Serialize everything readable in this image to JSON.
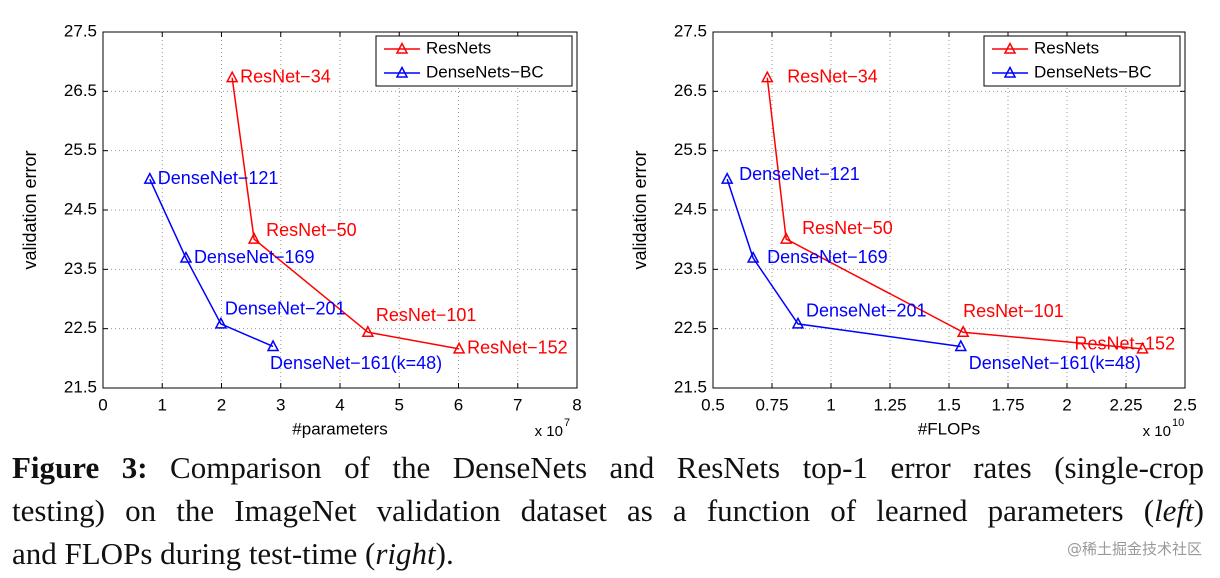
{
  "chart_data": [
    {
      "type": "line",
      "x_label": "#parameters",
      "y_label": "validation error",
      "x_scale": "x 10",
      "x_scale_exponent": "7",
      "xlim": [
        0,
        8
      ],
      "xticks": [
        0,
        1,
        2,
        3,
        4,
        5,
        6,
        7,
        8
      ],
      "ylim": [
        21.5,
        27.5
      ],
      "yticks": [
        21.5,
        22.5,
        23.5,
        24.5,
        25.5,
        26.5,
        27.5
      ],
      "grid": true,
      "legend": "upper right",
      "series": [
        {
          "name": "ResNets",
          "color": "#ff0000",
          "marker": "triangle",
          "x": [
            2.18,
            2.55,
            4.47,
            6.01
          ],
          "values": [
            26.73,
            24.01,
            22.44,
            22.16
          ],
          "point_labels": [
            "ResNet−34",
            "ResNet−50",
            "ResNet−101",
            "ResNet−152"
          ]
        },
        {
          "name": "DenseNets−BC",
          "color": "#0000ff",
          "marker": "triangle",
          "x": [
            0.79,
            1.4,
            1.99,
            2.87
          ],
          "values": [
            25.02,
            23.69,
            22.58,
            22.2
          ],
          "point_labels": [
            "DenseNet−121",
            "DenseNet−169",
            "DenseNet−201",
            "DenseNet−161(k=48)"
          ]
        }
      ]
    },
    {
      "type": "line",
      "x_label": "#FLOPs",
      "y_label": "validation error",
      "x_scale": "x 10",
      "x_scale_exponent": "10",
      "xlim": [
        0.5,
        2.5
      ],
      "xticks": [
        0.5,
        0.75,
        1,
        1.25,
        1.5,
        1.75,
        2,
        2.25,
        2.5
      ],
      "ylim": [
        21.5,
        27.5
      ],
      "yticks": [
        21.5,
        22.5,
        23.5,
        24.5,
        25.5,
        26.5,
        27.5
      ],
      "grid": true,
      "legend": "upper right",
      "series": [
        {
          "name": "ResNets",
          "color": "#ff0000",
          "marker": "triangle",
          "x": [
            0.73,
            0.81,
            1.56,
            2.32
          ],
          "values": [
            26.73,
            24.01,
            22.44,
            22.16
          ],
          "point_labels": [
            "ResNet−34",
            "ResNet−50",
            "ResNet−101",
            "ResNet−152"
          ]
        },
        {
          "name": "DenseNets−BC",
          "color": "#0000ff",
          "marker": "triangle",
          "x": [
            0.56,
            0.67,
            0.86,
            1.55
          ],
          "values": [
            25.02,
            23.69,
            22.58,
            22.2
          ],
          "point_labels": [
            "DenseNet−121",
            "DenseNet−169",
            "DenseNet−201",
            "DenseNet−161(k=48)"
          ]
        }
      ]
    }
  ],
  "caption": {
    "label": "Figure 3:",
    "line_1": " Comparison of the DenseNets and ResNets top-1 error rates (single-crop",
    "line_2": "testing) on the ImageNet validation dataset as a function of learned parameters (",
    "left": "left",
    "line_2_end": ")",
    "line_3": "and FLOPs during test-time (",
    "right": "right",
    "line_3_end": ")."
  },
  "watermark": "@稀土掘金技术社区"
}
